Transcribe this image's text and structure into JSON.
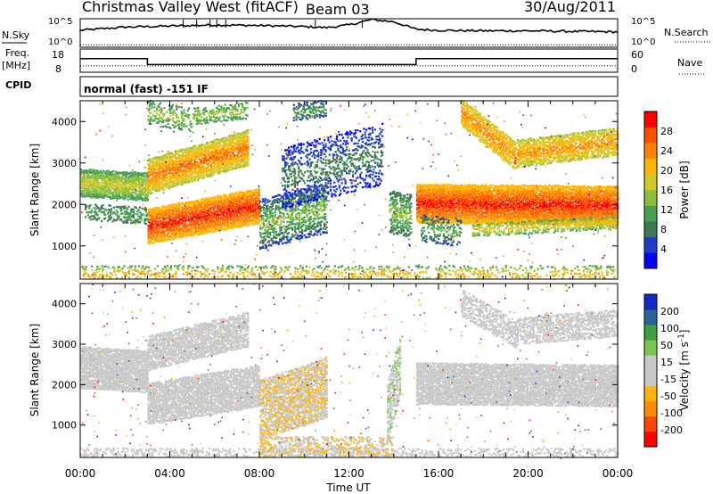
{
  "header": {
    "station_name": "Christmas Valley West (fitACF)",
    "beam": "Beam 03",
    "date": "30/Aug/2011"
  },
  "strip_labels": {
    "nsky": "N.Sky",
    "nsearch": "N.Search",
    "freq_line1": "Freq.",
    "freq_line2": "[MHz]",
    "nave": "Nave",
    "cpid": "CPID",
    "cpid_text": "normal (fast) -151 IF",
    "noise_tick_top": "10^5",
    "noise_tick_bottom": "10^0",
    "freq_tick_top": "18",
    "freq_tick_bottom": "8",
    "nave_tick_top": "60",
    "nave_tick_bottom": "0"
  },
  "colors": {
    "power_scale": [
      "#0000ff",
      "#1e3cc8",
      "#3c7850",
      "#46a050",
      "#8cbe3c",
      "#d2c828",
      "#ffb400",
      "#ff8200",
      "#ff5000",
      "#ff0000"
    ],
    "velocity_scale": [
      "#ff0000",
      "#ff4600",
      "#ff8c00",
      "#ffb400",
      "#c8c8c8",
      "#c8c8c8",
      "#78c850",
      "#3ca03c",
      "#286496",
      "#1428c8"
    ],
    "velocity_gray": "#c8c8c8"
  },
  "chart_data": [
    {
      "type": "line",
      "name": "noise-strip",
      "x_range": [
        "00:00",
        "24:00"
      ],
      "series": [
        {
          "name": "N.Sky",
          "x_hours": [
            0,
            2,
            4,
            6,
            8,
            10,
            11,
            12,
            13,
            14,
            15,
            16,
            18,
            20,
            22,
            24
          ],
          "values_log10": [
            3.0,
            3.6,
            3.8,
            4.0,
            3.9,
            3.7,
            3.5,
            4.0,
            5.0,
            4.6,
            3.2,
            3.0,
            2.9,
            2.9,
            2.8,
            2.7
          ]
        },
        {
          "name": "N.Search",
          "x_hours": [
            0,
            24
          ],
          "values_log10": [
            0.3,
            0.3
          ]
        }
      ],
      "ylim_log10": [
        0,
        5
      ]
    },
    {
      "type": "line",
      "name": "frequency-nave-strip",
      "series": [
        {
          "name": "Freq.",
          "unit": "MHz",
          "x_hours": [
            0,
            3.0,
            3.0,
            15.0,
            15.0,
            24
          ],
          "values": [
            14.0,
            14.0,
            11.0,
            11.0,
            14.0,
            14.0
          ]
        },
        {
          "name": "Nave",
          "x_hours": [
            0,
            24
          ],
          "values": [
            14,
            14
          ]
        }
      ],
      "ylim_freq": [
        8,
        18
      ],
      "ylim_nave": [
        0,
        60
      ]
    },
    {
      "type": "heatmap",
      "name": "power-panel",
      "xlabel": "",
      "ylabel": "Slant Range [km]",
      "colorbar_label": "Power [dB]",
      "colorbar_ticks": [
        "4",
        "8",
        "12",
        "16",
        "20",
        "24",
        "28"
      ],
      "colorbar_range": [
        0,
        30
      ],
      "x_range_hours": [
        0,
        24
      ],
      "y_range_km": [
        200,
        4500
      ],
      "y_ticks": [
        "1000",
        "2000",
        "3000",
        "4000"
      ],
      "features": [
        {
          "t": [
            0.0,
            3.0
          ],
          "r0": [
            2500,
            2400
          ],
          "w": 300,
          "v": [
            10,
            18
          ],
          "d": 0.9
        },
        {
          "t": [
            0.2,
            3.0
          ],
          "r0": [
            1800,
            1700
          ],
          "w": 200,
          "v": [
            6,
            12
          ],
          "d": 0.4
        },
        {
          "t": [
            3.0,
            7.5
          ],
          "r0": [
            2650,
            3350
          ],
          "w": 420,
          "v": [
            14,
            26
          ],
          "d": 0.85
        },
        {
          "t": [
            3.0,
            8.0
          ],
          "r0": [
            1450,
            1950
          ],
          "w": 400,
          "v": [
            18,
            30
          ],
          "d": 0.9
        },
        {
          "t": [
            3.0,
            5.0
          ],
          "r0": [
            4200,
            4000
          ],
          "w": 250,
          "v": [
            8,
            16
          ],
          "d": 0.35
        },
        {
          "t": [
            5.0,
            7.5
          ],
          "r0": [
            4100,
            4250
          ],
          "w": 200,
          "v": [
            8,
            16
          ],
          "d": 0.4
        },
        {
          "t": [
            8.0,
            11.0
          ],
          "r0": [
            1500,
            1900
          ],
          "w": 600,
          "v": [
            4,
            16
          ],
          "d": 0.45
        },
        {
          "t": [
            9.0,
            13.5
          ],
          "r0": [
            2600,
            3200
          ],
          "w": 700,
          "v": [
            2,
            10
          ],
          "d": 0.3
        },
        {
          "t": [
            9.5,
            11.0
          ],
          "r0": [
            4200,
            4300
          ],
          "w": 200,
          "v": [
            4,
            12
          ],
          "d": 0.4
        },
        {
          "t": [
            13.8,
            14.8
          ],
          "r0": [
            1800,
            1700
          ],
          "w": 500,
          "v": [
            6,
            16
          ],
          "d": 0.5
        },
        {
          "t": [
            15.0,
            24.0
          ],
          "r0": [
            2000,
            1950
          ],
          "w": 450,
          "v": [
            18,
            30
          ],
          "d": 0.95
        },
        {
          "t": [
            15.2,
            17.0
          ],
          "r0": [
            1400,
            1300
          ],
          "w": 300,
          "v": [
            4,
            14
          ],
          "d": 0.35
        },
        {
          "t": [
            17.5,
            24.0
          ],
          "r0": [
            1350,
            1550
          ],
          "w": 150,
          "v": [
            10,
            20
          ],
          "d": 0.5
        },
        {
          "t": [
            17.0,
            19.5
          ],
          "r0": [
            4200,
            3100
          ],
          "w": 300,
          "v": [
            16,
            24
          ],
          "d": 0.7
        },
        {
          "t": [
            19.5,
            24.0
          ],
          "r0": [
            3200,
            3500
          ],
          "w": 300,
          "v": [
            14,
            24
          ],
          "d": 0.7
        },
        {
          "t": [
            0.0,
            24.0
          ],
          "r0": [
            300,
            300
          ],
          "w": 200,
          "v": [
            8,
            24
          ],
          "d": 0.25
        }
      ]
    },
    {
      "type": "heatmap",
      "name": "velocity-panel",
      "xlabel": "Time UT",
      "ylabel": "Slant Range [km]",
      "colorbar_label": "Velocity [m s^-1]",
      "colorbar_ticks": [
        "-200",
        "-100",
        "-50",
        "-15",
        "15",
        "50",
        "100",
        "200"
      ],
      "colorbar_range": [
        -250,
        250
      ],
      "x_range_hours": [
        0,
        24
      ],
      "x_ticks": [
        "00:00",
        "04:00",
        "08:00",
        "12:00",
        "16:00",
        "20:00",
        "00:00"
      ],
      "y_range_km": [
        200,
        4500
      ],
      "y_ticks": [
        "1000",
        "2000",
        "3000",
        "4000"
      ],
      "features": [
        {
          "t": [
            0.0,
            3.0
          ],
          "r0": [
            2400,
            2300
          ],
          "w": 500,
          "v": [
            -10,
            10
          ],
          "d": 0.9
        },
        {
          "t": [
            3.0,
            7.5
          ],
          "r0": [
            2750,
            3350
          ],
          "w": 400,
          "v": [
            -10,
            10
          ],
          "d": 0.75
        },
        {
          "t": [
            3.0,
            8.0
          ],
          "r0": [
            1500,
            1950
          ],
          "w": 500,
          "v": [
            -10,
            10
          ],
          "d": 0.8
        },
        {
          "t": [
            8.0,
            11.0
          ],
          "r0": [
            1350,
            1900
          ],
          "w": 700,
          "v": [
            -60,
            -30
          ],
          "d": 0.7
        },
        {
          "t": [
            13.7,
            14.3
          ],
          "r0": [
            1300,
            2500
          ],
          "w": 700,
          "v": [
            20,
            60
          ],
          "d": 0.65
        },
        {
          "t": [
            15.0,
            24.0
          ],
          "r0": [
            2000,
            1950
          ],
          "w": 500,
          "v": [
            -10,
            10
          ],
          "d": 0.85
        },
        {
          "t": [
            17.0,
            19.5
          ],
          "r0": [
            4000,
            3200
          ],
          "w": 300,
          "v": [
            -10,
            10
          ],
          "d": 0.55
        },
        {
          "t": [
            19.5,
            24.0
          ],
          "r0": [
            3300,
            3500
          ],
          "w": 300,
          "v": [
            -10,
            10
          ],
          "d": 0.55
        },
        {
          "t": [
            0.0,
            24.0
          ],
          "r0": [
            250,
            250
          ],
          "w": 150,
          "v": [
            -50,
            50
          ],
          "d": 0.3
        },
        {
          "t": [
            8.0,
            14.0
          ],
          "r0": [
            400,
            400
          ],
          "w": 250,
          "v": [
            -60,
            -30
          ],
          "d": 0.4
        }
      ]
    }
  ]
}
